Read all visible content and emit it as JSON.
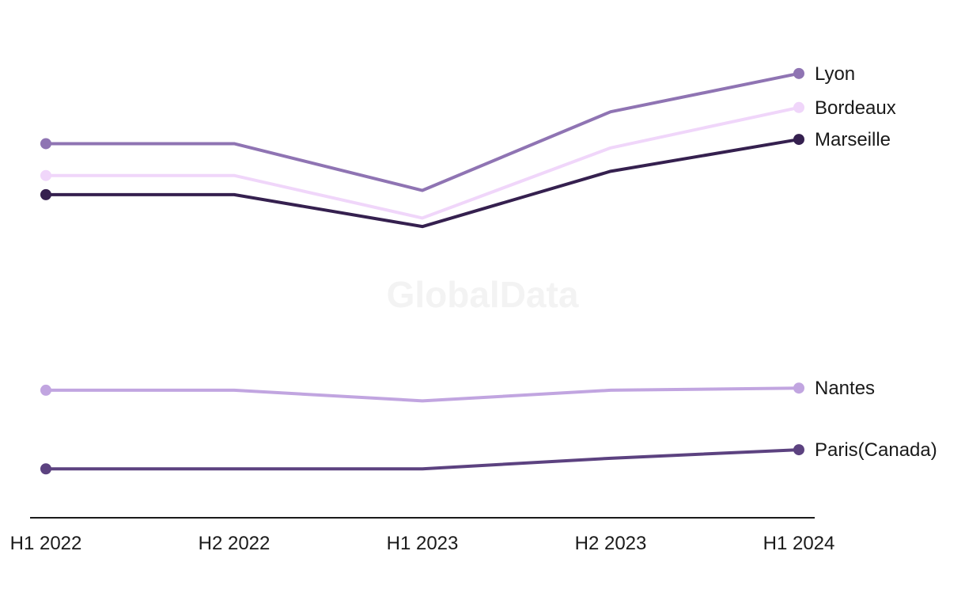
{
  "watermark": "GlobalData",
  "chart_data": {
    "type": "line",
    "title": "",
    "xlabel": "",
    "ylabel": "",
    "categories": [
      "H1 2022",
      "H2 2022",
      "H1 2023",
      "H2 2023",
      "H1 2024"
    ],
    "ylim": [
      0,
      100
    ],
    "grid": false,
    "legend": "direct labels at right end of lines",
    "series": [
      {
        "name": "Lyon",
        "color": "#8f74b3",
        "values": [
          88.0,
          88.0,
          77.0,
          95.5,
          104.5
        ]
      },
      {
        "name": "Bordeaux",
        "color": "#f0d6fa",
        "values": [
          80.5,
          80.5,
          70.5,
          87.0,
          96.5
        ]
      },
      {
        "name": "Marseille",
        "color": "#35204f",
        "values": [
          76.0,
          76.0,
          68.5,
          81.5,
          89.0
        ]
      },
      {
        "name": "Nantes",
        "color": "#c1a5e0",
        "values": [
          30.0,
          30.0,
          27.5,
          30.0,
          30.5
        ]
      },
      {
        "name": "Paris(Canada)",
        "color": "#5c4280",
        "values": [
          11.5,
          11.5,
          11.5,
          14.0,
          16.0
        ]
      }
    ]
  }
}
